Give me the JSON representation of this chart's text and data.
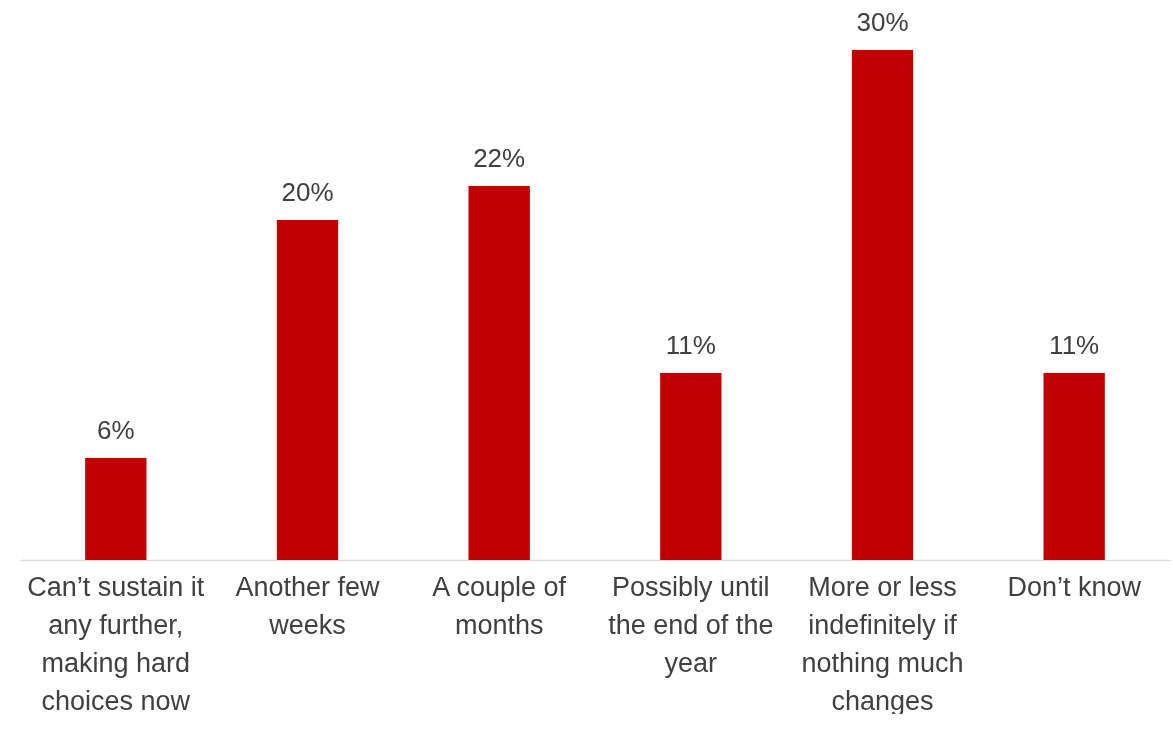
{
  "chart_data": {
    "type": "bar",
    "categories": [
      "Can’t sustain it any further, making hard choices now",
      "Another few weeks",
      "A couple of months",
      "Possibly until the end of the year",
      "More or less indefinitely if nothing much changes",
      "Don’t know"
    ],
    "values": [
      6,
      20,
      22,
      11,
      30,
      11
    ],
    "value_labels": [
      "6%",
      "20%",
      "22%",
      "11%",
      "30%",
      "11%"
    ],
    "color": "#c00000",
    "tick_labels": "x"
  }
}
